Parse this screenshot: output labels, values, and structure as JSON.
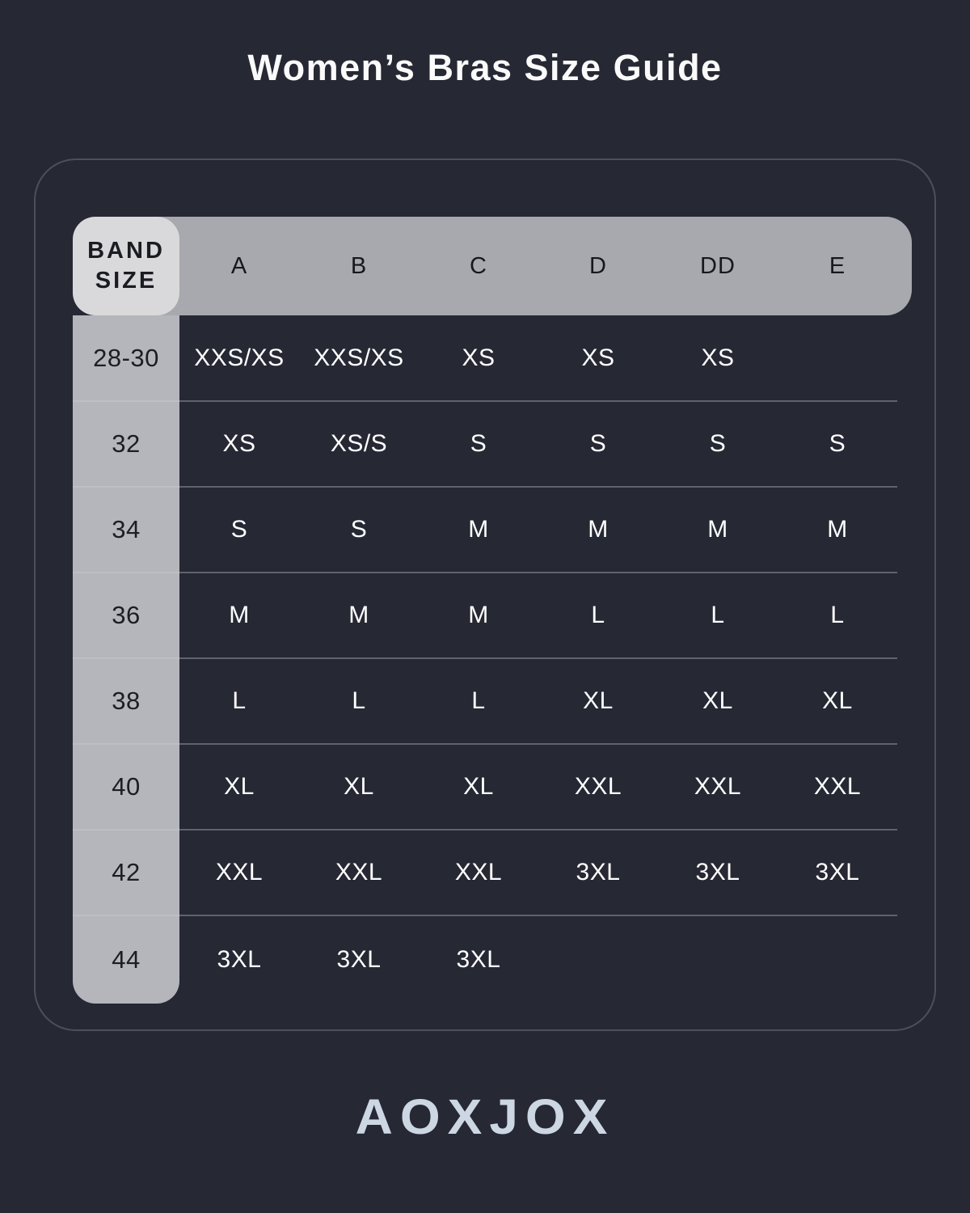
{
  "title": "Women’s Bras Size Guide",
  "brand": "AOXJOX",
  "colors": {
    "background": "#262834",
    "panel_border": "#4d4f59",
    "header_bg": "#a8a9ae",
    "corner_cell_bg": "#d9d9dc",
    "band_column_bg": "#b5b6bb",
    "row_divider": "#7e818c",
    "header_text": "#17181f",
    "band_text": "#1c1d25",
    "value_text": "#ffffff",
    "logo_color": "#cdd7e4"
  },
  "chart_data": {
    "type": "table",
    "title": "Women’s Bras Size Guide",
    "corner_header": "BAND SIZE",
    "columns": [
      "A",
      "B",
      "C",
      "D",
      "DD",
      "E"
    ],
    "rows": [
      {
        "band": "28-30",
        "cells": [
          "XXS/XS",
          "XXS/XS",
          "XS",
          "XS",
          "XS",
          ""
        ]
      },
      {
        "band": "32",
        "cells": [
          "XS",
          "XS/S",
          "S",
          "S",
          "S",
          "S"
        ]
      },
      {
        "band": "34",
        "cells": [
          "S",
          "S",
          "M",
          "M",
          "M",
          "M"
        ]
      },
      {
        "band": "36",
        "cells": [
          "M",
          "M",
          "M",
          "L",
          "L",
          "L"
        ]
      },
      {
        "band": "38",
        "cells": [
          "L",
          "L",
          "L",
          "XL",
          "XL",
          "XL"
        ]
      },
      {
        "band": "40",
        "cells": [
          "XL",
          "XL",
          "XL",
          "XXL",
          "XXL",
          "XXL"
        ]
      },
      {
        "band": "42",
        "cells": [
          "XXL",
          "XXL",
          "XXL",
          "3XL",
          "3XL",
          "3XL"
        ]
      },
      {
        "band": "44",
        "cells": [
          "3XL",
          "3XL",
          "3XL",
          "",
          "",
          ""
        ]
      }
    ]
  }
}
